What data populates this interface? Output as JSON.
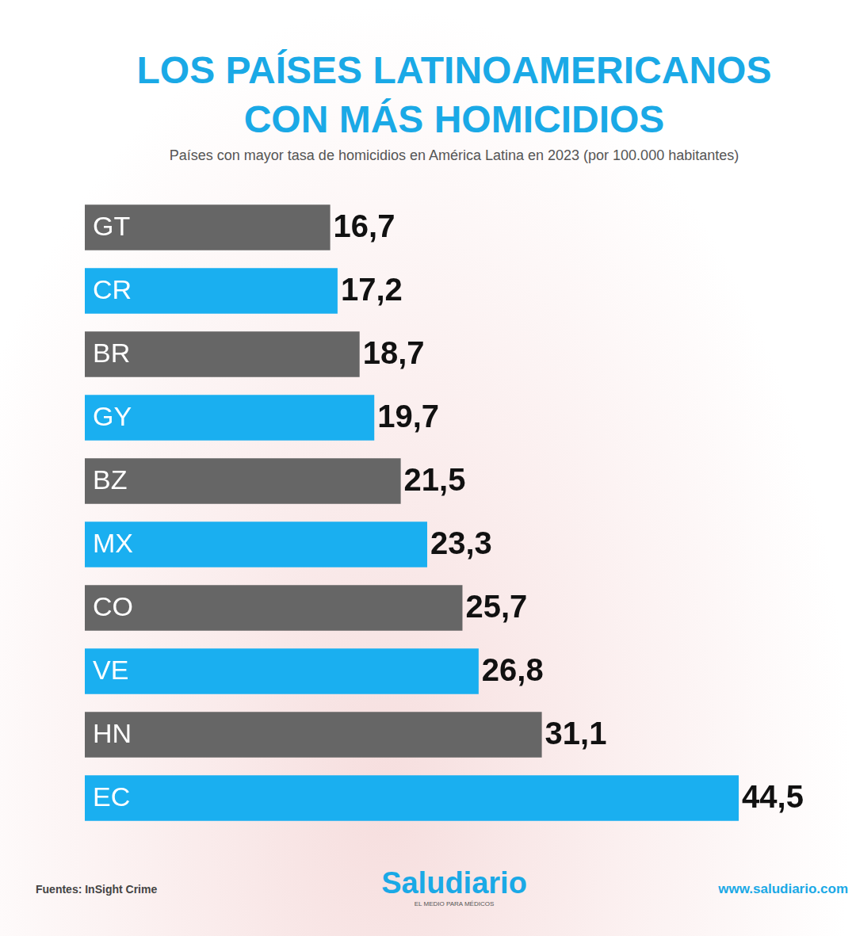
{
  "chart_data": {
    "type": "bar",
    "title": "LOS PAÍSES LATINOAMERICANOS CON MÁS HOMICIDIOS",
    "subtitle": "Países con mayor tasa de homicidios en América Latina en 2023 (por 100.000 habitantes)",
    "categories": [
      "GT",
      "CR",
      "BR",
      "GY",
      "BZ",
      "MX",
      "CO",
      "VE",
      "HN",
      "EC"
    ],
    "values": [
      16.7,
      17.2,
      18.7,
      19.7,
      21.5,
      23.3,
      25.7,
      26.8,
      31.1,
      44.5
    ],
    "value_labels": [
      "16,7",
      "17,2",
      "18,7",
      "19,7",
      "21,5",
      "23,3",
      "25,7",
      "26,8",
      "31,1",
      "44,5"
    ],
    "colors": [
      "#666666",
      "#1aaff0",
      "#666666",
      "#1aaff0",
      "#666666",
      "#1aaff0",
      "#666666",
      "#1aaff0",
      "#666666",
      "#1aaff0"
    ],
    "orientation": "horizontal",
    "xlim": [
      0,
      50
    ],
    "grid": false,
    "tick_labels": false,
    "data_labels": true,
    "source": "Fuentes: InSight Crime",
    "brand": "Saludiario",
    "tagline": "EL MEDIO PARA MÉDICOS",
    "website": "www.saludiario.com"
  }
}
